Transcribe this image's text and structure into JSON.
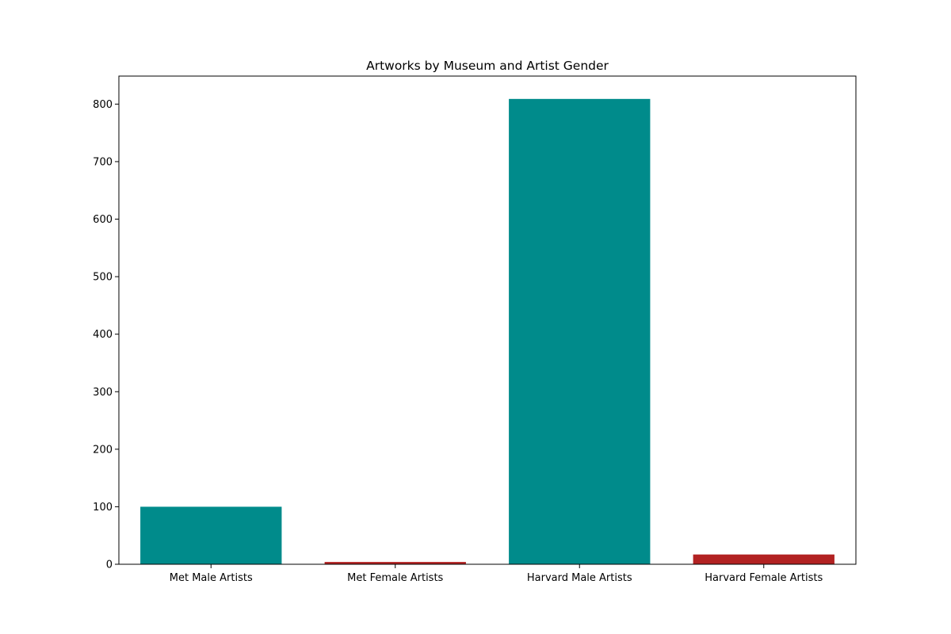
{
  "chart_data": {
    "type": "bar",
    "title": "Artworks by Museum and Artist Gender",
    "xlabel": "",
    "ylabel": "",
    "categories": [
      "Met Male Artists",
      "Met Female Artists",
      "Harvard Male Artists",
      "Harvard Female Artists"
    ],
    "values": [
      100,
      4,
      809,
      17
    ],
    "bar_colors": [
      "#008b8b",
      "#b22222",
      "#008b8b",
      "#b22222"
    ],
    "ylim": [
      0,
      850
    ],
    "yticks": [
      0,
      100,
      200,
      300,
      400,
      500,
      600,
      700,
      800
    ],
    "grid": false,
    "legend": "none"
  }
}
